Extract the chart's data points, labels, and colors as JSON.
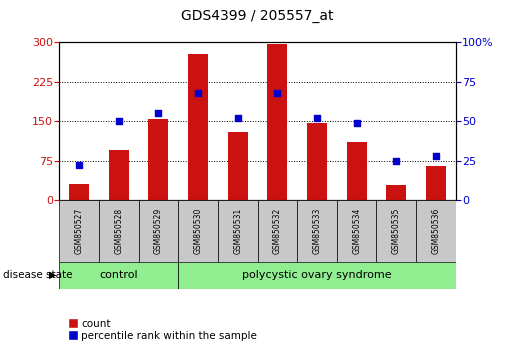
{
  "title": "GDS4399 / 205557_at",
  "samples": [
    "GSM850527",
    "GSM850528",
    "GSM850529",
    "GSM850530",
    "GSM850531",
    "GSM850532",
    "GSM850533",
    "GSM850534",
    "GSM850535",
    "GSM850536"
  ],
  "counts": [
    30,
    95,
    155,
    278,
    130,
    297,
    147,
    110,
    28,
    65
  ],
  "percentiles": [
    22,
    50,
    55,
    68,
    52,
    68,
    52,
    49,
    25,
    28
  ],
  "ylim_left": [
    0,
    300
  ],
  "ylim_right": [
    0,
    100
  ],
  "yticks_left": [
    0,
    75,
    150,
    225,
    300
  ],
  "yticks_right": [
    0,
    25,
    50,
    75,
    100
  ],
  "bar_color": "#cc1111",
  "dot_color": "#0000cc",
  "control_color": "#90ee90",
  "pcos_color": "#90ee90",
  "sample_box_color": "#c8c8c8",
  "n_control": 3,
  "n_pcos": 7,
  "disease_label": "disease state",
  "control_label": "control",
  "pcos_label": "polycystic ovary syndrome",
  "legend_count": "count",
  "legend_percentile": "percentile rank within the sample",
  "bar_width": 0.5
}
